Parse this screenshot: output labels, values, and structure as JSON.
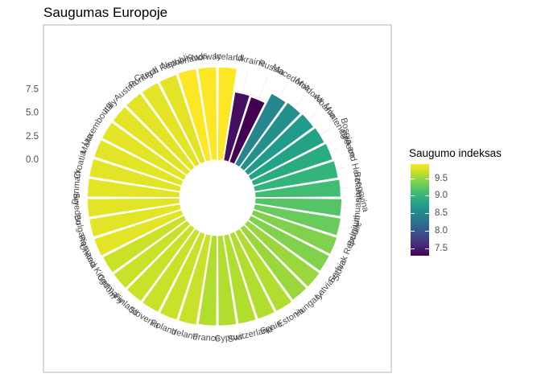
{
  "chart_data": {
    "type": "bar",
    "coordinates": "polar",
    "title": "Saugumas Europoje",
    "xlabel": "",
    "ylabel": "",
    "categories": [
      "Iceland",
      "Ukraine",
      "Russia",
      "Macedonia",
      "Moldova",
      "Albania",
      "Montenegro",
      "Greece",
      "Bosnia and Herzegovina",
      "Belarus",
      "Lithuania",
      "Belgium",
      "Slovak Republic",
      "Serbia",
      "Latvia",
      "Hungary",
      "Estonia",
      "Spain",
      "Switzerland",
      "Cyprus",
      "France",
      "Ireland",
      "Poland",
      "Slovenia",
      "Finland",
      "Germany",
      "United Kingdom",
      "Romania",
      "Bulgaria",
      "Sweden",
      "Denmark",
      "Croatia",
      "Malta",
      "Luxembourg",
      "Italy",
      "Austria",
      "Portugal",
      "Czech Republic",
      "Netherlands",
      "Norway"
    ],
    "series": [
      {
        "values": [
          9.9,
          7.4,
          7.3,
          8.5,
          8.6,
          8.7,
          8.8,
          8.9,
          9.0,
          9.1,
          9.2,
          9.3,
          9.4,
          9.4,
          9.5,
          9.5,
          9.6,
          9.6,
          9.6,
          9.6,
          9.6,
          9.7,
          9.7,
          9.7,
          9.7,
          9.7,
          9.7,
          9.8,
          9.8,
          9.8,
          9.8,
          9.8,
          9.8,
          9.8,
          9.8,
          9.8,
          9.8,
          9.8,
          9.9,
          9.9
        ]
      }
    ],
    "radial_ticks": [
      "0.0",
      "2.5",
      "5.0",
      "7.5"
    ],
    "radial_tick_values": [
      0,
      2.5,
      5,
      7.5
    ],
    "radial_range": [
      -4,
      10
    ],
    "legend": {
      "title": "Saugumo indeksas",
      "range": [
        7.3,
        9.9
      ],
      "ticks": [
        7.5,
        8.0,
        8.5,
        9.0,
        9.5
      ],
      "tick_labels": [
        "7.5",
        "8.0",
        "8.5",
        "9.0",
        "9.5"
      ],
      "position": "right"
    },
    "grid": true
  }
}
